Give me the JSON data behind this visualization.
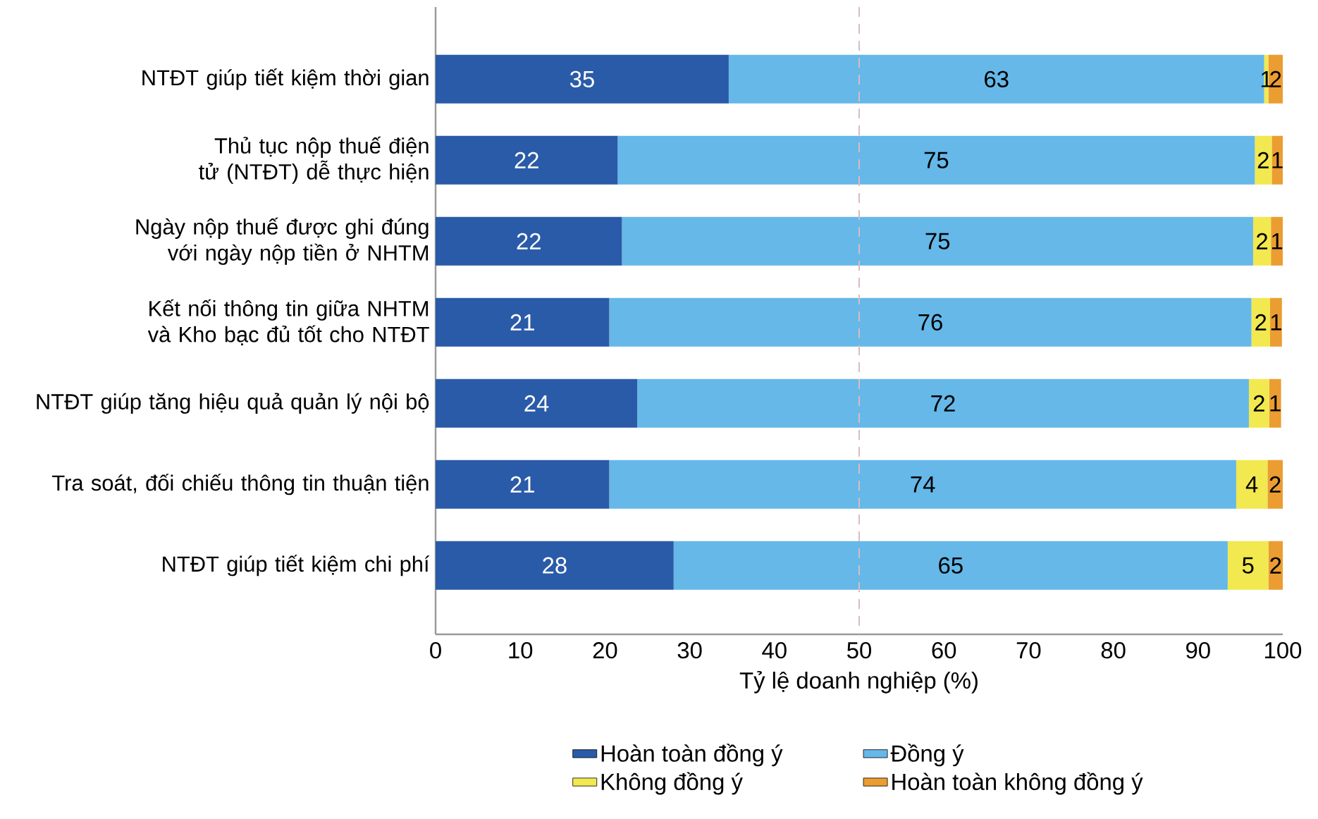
{
  "chart_data": {
    "type": "bar",
    "orientation": "horizontal",
    "stacked": true,
    "categories": [
      "NTĐT giúp tiết kiệm thời gian",
      "Thủ tục nộp thuế điện tử (NTĐT) dễ thực hiện",
      "Ngày nộp thuế được ghi đúng với ngày nộp tiền ở NHTM",
      "Kết nối thông tin giữa NHTM và Kho bạc đủ tốt cho NTĐT",
      "NTĐT giúp tăng hiệu quả quản lý nội bộ",
      "Tra soát, đối chiếu thông tin thuận tiện",
      "NTĐT giúp tiết kiệm chi phí"
    ],
    "series": [
      {
        "name": "Hoàn toàn đồng ý",
        "color": "#2a5ba8",
        "values": [
          34.6,
          21.5,
          22.0,
          20.5,
          23.8,
          20.5,
          28.1
        ],
        "value_labels": [
          "35",
          "22",
          "22",
          "21",
          "24",
          "21",
          "28"
        ]
      },
      {
        "name": "Đồng ý",
        "color": "#65b8e8",
        "values": [
          63.2,
          75.2,
          74.5,
          75.8,
          72.2,
          74.0,
          65.4
        ],
        "value_labels": [
          "63",
          "75",
          "75",
          "76",
          "72",
          "74",
          "65"
        ]
      },
      {
        "name": "Không đồng ý",
        "color": "#f2e84f",
        "values": [
          0.5,
          2.0,
          2.1,
          2.2,
          2.4,
          3.7,
          4.8
        ],
        "value_labels": [
          "1",
          "2",
          "2",
          "2",
          "2",
          "4",
          "5"
        ]
      },
      {
        "name": "Hoàn toàn không đồng ý",
        "color": "#eb9d32",
        "values": [
          1.7,
          1.3,
          1.4,
          1.4,
          1.4,
          1.8,
          1.7
        ],
        "value_labels": [
          "2",
          "1",
          "1",
          "1",
          "1",
          "2",
          "2"
        ]
      }
    ],
    "xlabel": "Tỷ lệ doanh nghiệp (%)",
    "xlim": [
      0,
      100
    ],
    "xticks": [
      0,
      10,
      20,
      30,
      40,
      50,
      60,
      70,
      80,
      90,
      100
    ],
    "ref_lines": [
      {
        "axis": "x",
        "value": 50,
        "color": "#dbbcc0",
        "line_style": "dashed"
      }
    ],
    "legend": "bottom",
    "grid": false
  }
}
